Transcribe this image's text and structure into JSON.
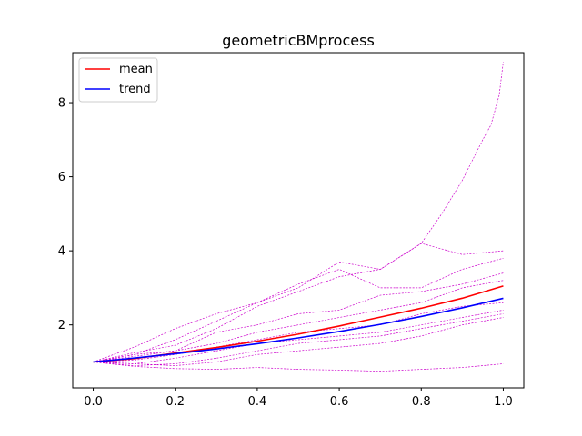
{
  "chart_data": {
    "type": "line",
    "title": "geometricBMprocess",
    "xlabel": "",
    "ylabel": "",
    "xlim": [
      -0.05,
      1.05
    ],
    "ylim": [
      0.3,
      9.35
    ],
    "xticks": [
      0.0,
      0.2,
      0.4,
      0.6,
      0.8,
      1.0
    ],
    "xtick_labels": [
      "0.0",
      "0.2",
      "0.4",
      "0.6",
      "0.8",
      "1.0"
    ],
    "yticks": [
      2,
      4,
      6,
      8
    ],
    "ytick_labels": [
      "2",
      "4",
      "6",
      "8"
    ],
    "grid": false,
    "legend_position": "top-left",
    "legend": [
      {
        "name": "mean",
        "color": "#ff0000"
      },
      {
        "name": "trend",
        "color": "#0000ff"
      }
    ],
    "series": [
      {
        "name": "mean",
        "role": "legend",
        "color": "#ff0000",
        "style": "solid",
        "x": [
          0,
          0.1,
          0.2,
          0.3,
          0.4,
          0.5,
          0.6,
          0.7,
          0.8,
          0.9,
          1.0
        ],
        "y": [
          1.0,
          1.09,
          1.24,
          1.39,
          1.56,
          1.75,
          1.97,
          2.21,
          2.45,
          2.72,
          3.05
        ]
      },
      {
        "name": "trend",
        "role": "legend",
        "color": "#0000ff",
        "style": "solid",
        "x": [
          0,
          0.1,
          0.2,
          0.3,
          0.4,
          0.5,
          0.6,
          0.7,
          0.8,
          0.9,
          1.0
        ],
        "y": [
          1.0,
          1.105,
          1.221,
          1.35,
          1.492,
          1.649,
          1.822,
          2.014,
          2.226,
          2.46,
          2.718
        ]
      },
      {
        "role": "path",
        "color": "#cc00cc",
        "style": "dashed",
        "x": [
          0,
          0.1,
          0.2,
          0.3,
          0.4,
          0.5,
          0.6,
          0.7,
          0.8,
          0.85,
          0.9,
          0.95,
          0.97,
          0.99,
          1.0
        ],
        "y": [
          1.0,
          1.25,
          1.45,
          1.9,
          2.5,
          2.9,
          3.3,
          3.5,
          4.2,
          5.0,
          5.9,
          7.0,
          7.4,
          8.2,
          9.1
        ]
      },
      {
        "role": "path",
        "color": "#cc00cc",
        "style": "dashed",
        "x": [
          0,
          0.1,
          0.2,
          0.3,
          0.4,
          0.5,
          0.6,
          0.7,
          0.8,
          0.9,
          1.0
        ],
        "y": [
          1.0,
          1.2,
          1.6,
          2.1,
          2.6,
          3.0,
          3.7,
          3.5,
          4.2,
          3.9,
          4.0
        ]
      },
      {
        "role": "path",
        "color": "#cc00cc",
        "style": "dashed",
        "x": [
          0,
          0.1,
          0.2,
          0.3,
          0.4,
          0.5,
          0.6,
          0.7,
          0.8,
          0.9,
          1.0
        ],
        "y": [
          1.0,
          1.4,
          1.9,
          2.3,
          2.6,
          3.1,
          3.5,
          3.0,
          3.0,
          3.5,
          3.8
        ]
      },
      {
        "role": "path",
        "color": "#cc00cc",
        "style": "dashed",
        "x": [
          0,
          0.1,
          0.2,
          0.3,
          0.4,
          0.5,
          0.6,
          0.7,
          0.8,
          0.9,
          1.0
        ],
        "y": [
          1.0,
          1.15,
          1.3,
          1.8,
          2.0,
          2.3,
          2.4,
          2.8,
          2.9,
          3.1,
          3.4
        ]
      },
      {
        "role": "path",
        "color": "#cc00cc",
        "style": "dashed",
        "x": [
          0,
          0.1,
          0.2,
          0.3,
          0.4,
          0.5,
          0.6,
          0.7,
          0.8,
          0.9,
          1.0
        ],
        "y": [
          1.0,
          1.2,
          1.3,
          1.5,
          1.8,
          2.0,
          2.2,
          2.4,
          2.6,
          3.0,
          3.2
        ]
      },
      {
        "role": "path",
        "color": "#cc00cc",
        "style": "dashed",
        "x": [
          0,
          0.1,
          0.2,
          0.3,
          0.4,
          0.5,
          0.6,
          0.7,
          0.8,
          0.9,
          1.0
        ],
        "y": [
          1.0,
          1.05,
          1.2,
          1.4,
          1.6,
          1.8,
          1.9,
          2.0,
          2.3,
          2.5,
          2.6
        ]
      },
      {
        "role": "path",
        "color": "#cc00cc",
        "style": "dashed",
        "x": [
          0,
          0.1,
          0.2,
          0.3,
          0.4,
          0.5,
          0.6,
          0.7,
          0.8,
          0.9,
          1.0
        ],
        "y": [
          1.0,
          0.95,
          1.1,
          1.3,
          1.5,
          1.6,
          1.7,
          1.8,
          2.0,
          2.2,
          2.4
        ]
      },
      {
        "role": "path",
        "color": "#cc00cc",
        "style": "dashed",
        "x": [
          0,
          0.1,
          0.2,
          0.3,
          0.4,
          0.5,
          0.6,
          0.7,
          0.8,
          0.9,
          1.0
        ],
        "y": [
          1.0,
          0.9,
          0.95,
          1.1,
          1.3,
          1.5,
          1.6,
          1.7,
          1.9,
          2.1,
          2.3
        ]
      },
      {
        "role": "path",
        "color": "#cc00cc",
        "style": "dashed",
        "x": [
          0,
          0.1,
          0.2,
          0.3,
          0.4,
          0.5,
          0.6,
          0.7,
          0.8,
          0.9,
          1.0
        ],
        "y": [
          1.0,
          0.95,
          0.9,
          1.0,
          1.2,
          1.3,
          1.4,
          1.5,
          1.7,
          2.0,
          2.2
        ]
      },
      {
        "role": "path",
        "color": "#cc00cc",
        "style": "dashed",
        "x": [
          0,
          0.1,
          0.2,
          0.3,
          0.4,
          0.5,
          0.6,
          0.7,
          0.8,
          0.9,
          1.0
        ],
        "y": [
          1.0,
          0.88,
          0.82,
          0.8,
          0.85,
          0.8,
          0.78,
          0.75,
          0.8,
          0.85,
          0.95
        ]
      }
    ]
  }
}
